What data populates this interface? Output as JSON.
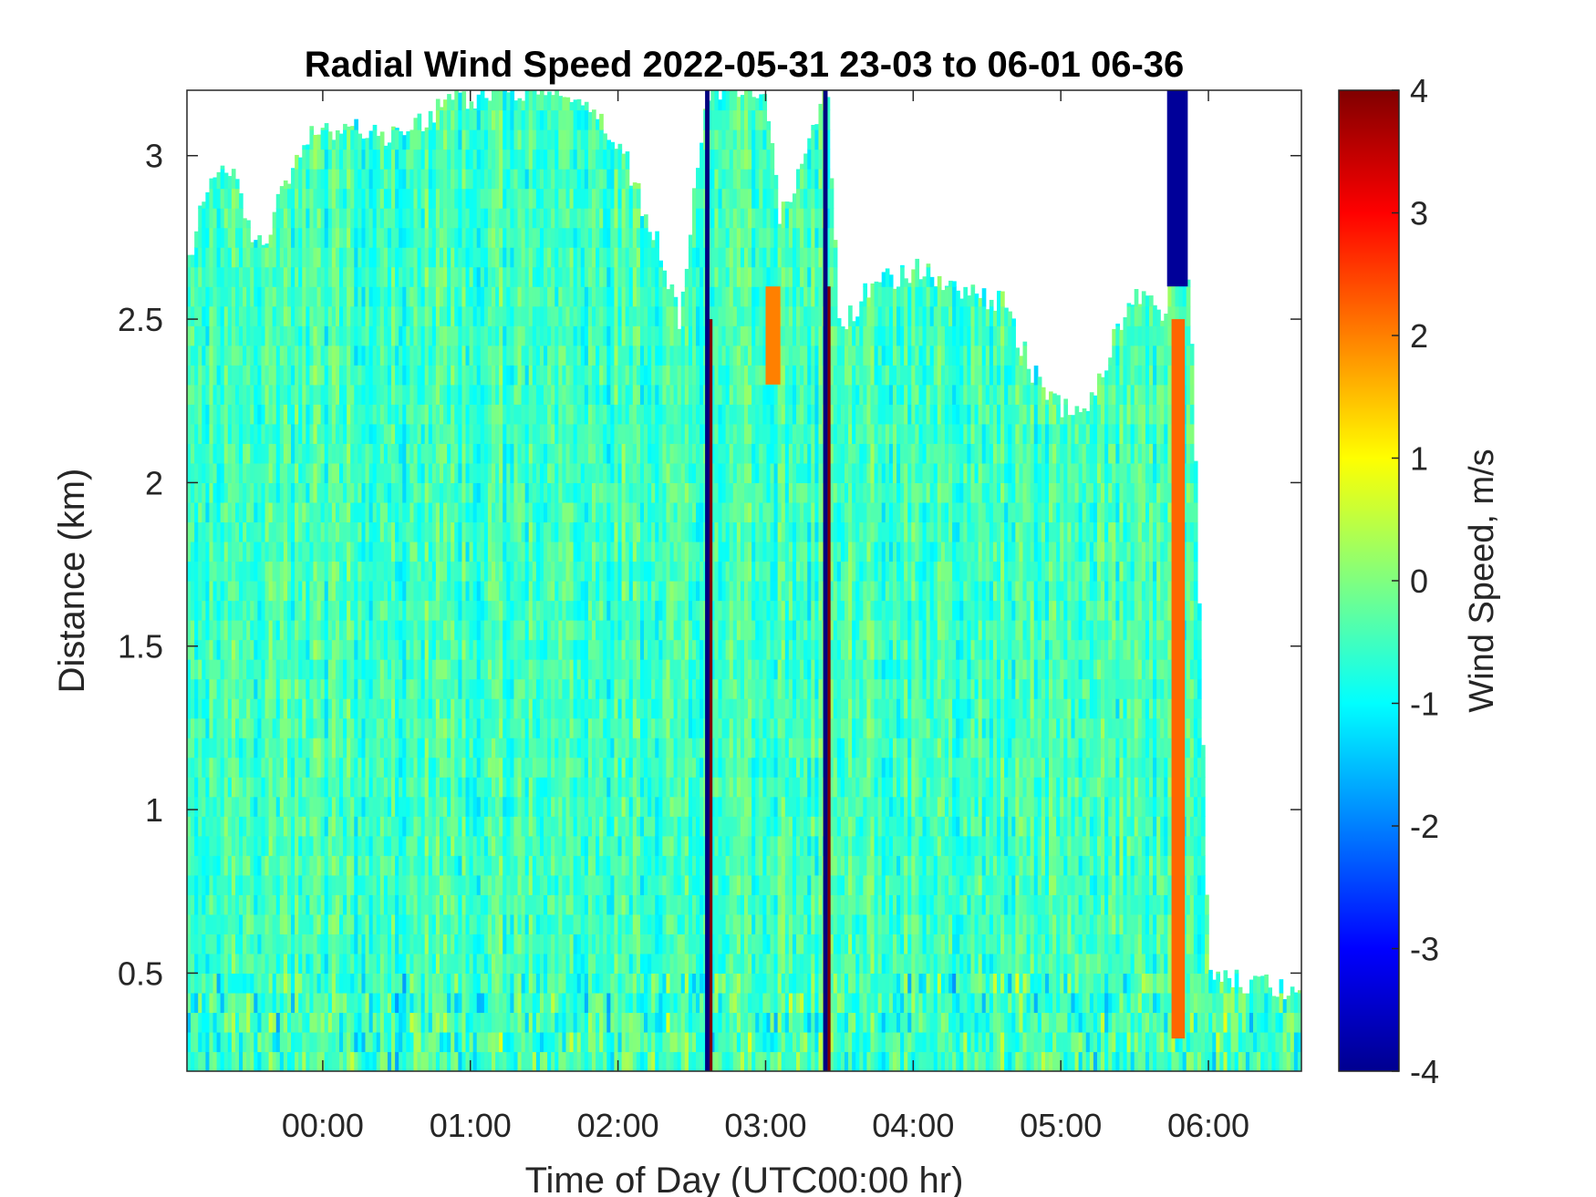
{
  "chart_data": {
    "type": "heatmap",
    "title": "Radial Wind Speed 2022-05-31 23-03 to 06-01 06-36",
    "xlabel": "Time of Day (UTC00:00 hr)",
    "ylabel": "Distance (km)",
    "colorbar_label": "Wind Speed, m/s",
    "colormap": "jet",
    "x_range_hours": [
      -0.92,
      6.63
    ],
    "y_range_km": [
      0.2,
      3.2
    ],
    "color_range": [
      -4,
      4
    ],
    "x_ticks": [
      {
        "value": 0,
        "label": "00:00"
      },
      {
        "value": 1,
        "label": "01:00"
      },
      {
        "value": 2,
        "label": "02:00"
      },
      {
        "value": 3,
        "label": "03:00"
      },
      {
        "value": 4,
        "label": "04:00"
      },
      {
        "value": 5,
        "label": "05:00"
      },
      {
        "value": 6,
        "label": "06:00"
      }
    ],
    "y_ticks": [
      {
        "value": 0.5,
        "label": "0.5"
      },
      {
        "value": 1,
        "label": "1"
      },
      {
        "value": 1.5,
        "label": "1.5"
      },
      {
        "value": 2,
        "label": "2"
      },
      {
        "value": 2.5,
        "label": "2.5"
      },
      {
        "value": 3,
        "label": "3"
      }
    ],
    "c_ticks": [
      {
        "value": 4,
        "label": "4"
      },
      {
        "value": 3,
        "label": "3"
      },
      {
        "value": 2,
        "label": "2"
      },
      {
        "value": 1,
        "label": "1"
      },
      {
        "value": 0,
        "label": "0"
      },
      {
        "value": -1,
        "label": "-1"
      },
      {
        "value": -2,
        "label": "-2"
      },
      {
        "value": -3,
        "label": "-3"
      },
      {
        "value": -4,
        "label": "-4"
      }
    ],
    "coverage_top_km": [
      {
        "t": -0.92,
        "h": 2.65
      },
      {
        "t": -0.8,
        "h": 2.9
      },
      {
        "t": -0.6,
        "h": 2.95
      },
      {
        "t": -0.45,
        "h": 2.7
      },
      {
        "t": -0.3,
        "h": 2.85
      },
      {
        "t": -0.1,
        "h": 3.05
      },
      {
        "t": 0.2,
        "h": 3.1
      },
      {
        "t": 0.5,
        "h": 3.05
      },
      {
        "t": 0.8,
        "h": 3.15
      },
      {
        "t": 1.2,
        "h": 3.2
      },
      {
        "t": 1.6,
        "h": 3.2
      },
      {
        "t": 2.0,
        "h": 3.05
      },
      {
        "t": 2.25,
        "h": 2.75
      },
      {
        "t": 2.42,
        "h": 2.5
      },
      {
        "t": 2.6,
        "h": 3.2
      },
      {
        "t": 3.0,
        "h": 3.2
      },
      {
        "t": 3.1,
        "h": 2.8
      },
      {
        "t": 3.42,
        "h": 3.2
      },
      {
        "t": 3.5,
        "h": 2.45
      },
      {
        "t": 3.7,
        "h": 2.6
      },
      {
        "t": 4.0,
        "h": 2.65
      },
      {
        "t": 4.3,
        "h": 2.6
      },
      {
        "t": 4.6,
        "h": 2.55
      },
      {
        "t": 4.9,
        "h": 2.25
      },
      {
        "t": 5.1,
        "h": 2.2
      },
      {
        "t": 5.25,
        "h": 2.3
      },
      {
        "t": 5.45,
        "h": 2.55
      },
      {
        "t": 5.6,
        "h": 2.6
      },
      {
        "t": 5.7,
        "h": 2.45
      },
      {
        "t": 5.8,
        "h": 3.2
      },
      {
        "t": 5.9,
        "h": 2.3
      },
      {
        "t": 6.0,
        "h": 0.5
      },
      {
        "t": 6.5,
        "h": 0.45
      },
      {
        "t": 6.63,
        "h": 0.45
      }
    ],
    "features": [
      {
        "type": "column",
        "t_start": 2.59,
        "t_end": 2.62,
        "value": -4
      },
      {
        "type": "column",
        "t_start": 2.62,
        "t_end": 2.64,
        "value": 4,
        "h_max": 2.5
      },
      {
        "type": "column",
        "t_start": 3.39,
        "t_end": 3.42,
        "value": -4
      },
      {
        "type": "column",
        "t_start": 3.42,
        "t_end": 3.44,
        "value": 4,
        "h_max": 2.6
      },
      {
        "type": "patch",
        "t_start": 3.0,
        "t_end": 3.1,
        "h_start": 2.3,
        "h_end": 2.6,
        "value": 2.0
      },
      {
        "type": "patch",
        "t_start": 5.75,
        "t_end": 5.84,
        "h_start": 0.3,
        "h_end": 2.5,
        "value": 2.2
      },
      {
        "type": "patch",
        "t_start": 5.72,
        "t_end": 5.86,
        "h_start": 2.6,
        "h_end": 3.2,
        "value": -3.8
      }
    ]
  }
}
